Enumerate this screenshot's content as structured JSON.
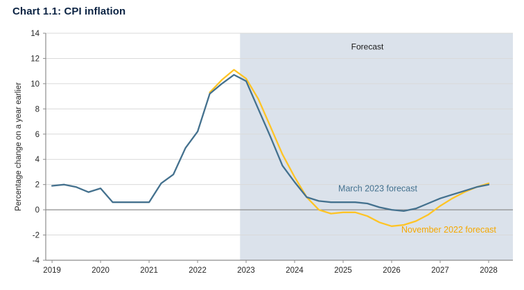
{
  "chart_data": {
    "type": "line",
    "title": "Chart 1.1: CPI inflation",
    "ylabel": "Percentage change on a year earlier",
    "xlabel": "",
    "xlim": [
      2018.87,
      2028.5
    ],
    "ylim": [
      -4,
      14
    ],
    "ytick_step": 2,
    "yticks": [
      -4,
      -2,
      0,
      2,
      4,
      6,
      8,
      10,
      12,
      14
    ],
    "xticks": [
      2019,
      2020,
      2021,
      2022,
      2023,
      2024,
      2025,
      2026,
      2027,
      2028
    ],
    "grid": true,
    "forecast_region": {
      "start": 2022.875,
      "fill": "#dbe2eb"
    },
    "series": [
      {
        "name": "November 2022 forecast",
        "color": "#ffc425",
        "x": [
          2022.25,
          2022.5,
          2022.75,
          2023.0,
          2023.25,
          2023.5,
          2023.75,
          2024.0,
          2024.25,
          2024.5,
          2024.75,
          2025.0,
          2025.25,
          2025.5,
          2025.75,
          2026.0,
          2026.25,
          2026.5,
          2026.75,
          2027.0,
          2027.25,
          2027.5,
          2027.75,
          2028.0
        ],
        "values": [
          9.3,
          10.3,
          11.1,
          10.4,
          8.8,
          6.6,
          4.4,
          2.6,
          1.0,
          0.0,
          -0.3,
          -0.2,
          -0.2,
          -0.5,
          -1.0,
          -1.3,
          -1.2,
          -0.9,
          -0.4,
          0.3,
          0.9,
          1.4,
          1.8,
          2.1
        ]
      },
      {
        "name": "March 2023 forecast",
        "color": "#44718e",
        "x": [
          2019.0,
          2019.25,
          2019.5,
          2019.75,
          2020.0,
          2020.25,
          2020.5,
          2020.75,
          2021.0,
          2021.25,
          2021.5,
          2021.75,
          2022.0,
          2022.25,
          2022.5,
          2022.75,
          2023.0,
          2023.25,
          2023.5,
          2023.75,
          2024.0,
          2024.25,
          2024.5,
          2024.75,
          2025.0,
          2025.25,
          2025.5,
          2025.75,
          2026.0,
          2026.25,
          2026.5,
          2026.75,
          2027.0,
          2027.25,
          2027.5,
          2027.75,
          2028.0
        ],
        "values": [
          1.9,
          2.0,
          1.8,
          1.4,
          1.7,
          0.6,
          0.6,
          0.6,
          0.6,
          2.1,
          2.8,
          4.9,
          6.2,
          9.2,
          10.0,
          10.7,
          10.2,
          8.0,
          5.8,
          3.5,
          2.2,
          1.0,
          0.7,
          0.6,
          0.6,
          0.6,
          0.5,
          0.2,
          0.0,
          -0.1,
          0.1,
          0.5,
          0.9,
          1.2,
          1.5,
          1.8,
          2.0
        ]
      }
    ],
    "annotations": [
      {
        "text": "Forecast",
        "x": 2025.5,
        "y": 12.7,
        "color": "#1a1a1a",
        "anchor": "middle",
        "size": 12
      },
      {
        "text": "March 2023 forecast",
        "x": 2024.9,
        "y": 1.45,
        "color": "#44718e",
        "anchor": "start",
        "size": 12.5
      },
      {
        "text": "November 2022 forecast",
        "x": 2026.2,
        "y": -1.8,
        "color": "#f5a800",
        "anchor": "start",
        "size": 12.5
      }
    ],
    "colors": {
      "gridline": "#d9d9d9",
      "zero_line": "#8c8c8c",
      "axis": "#8c8c8c",
      "tick_label": "#262626",
      "title": "#0b2343"
    }
  }
}
